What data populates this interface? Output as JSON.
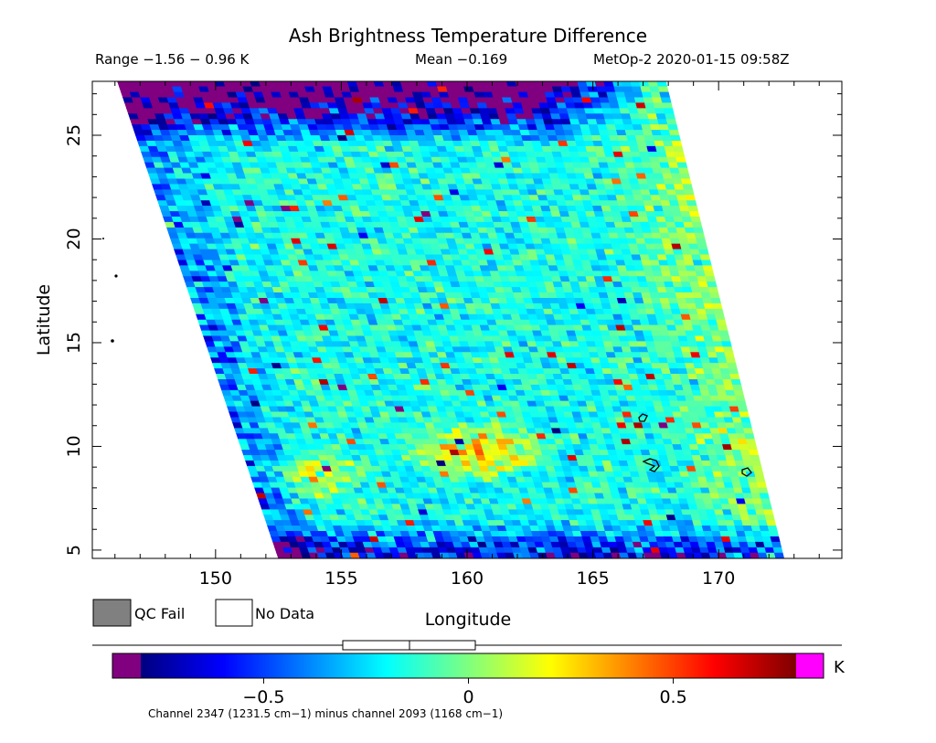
{
  "chart_data": {
    "type": "heatmap",
    "title": "Ash Brightness Temperature Difference",
    "range_label": "Range −1.56 − 0.96 K",
    "mean_label": "Mean −0.169",
    "satellite_label": "MetOp-2 2020-01-15 09:58Z",
    "xlabel": "Longitude",
    "ylabel": "Latitude",
    "xlim": [
      145.1,
      174.9
    ],
    "ylim": [
      4.6,
      27.6
    ],
    "xticks": [
      150,
      155,
      160,
      165,
      170
    ],
    "yticks": [
      5,
      10,
      15,
      20,
      25
    ],
    "swath_corners_lon_lat": {
      "top_left": [
        146.1,
        27.6
      ],
      "top_right": [
        167.9,
        27.6
      ],
      "bottom_right": [
        172.6,
        4.6
      ],
      "bottom_left": [
        152.5,
        4.6
      ]
    },
    "features": [
      {
        "kind": "hot_cluster",
        "lon": 160.5,
        "lat": 9.8,
        "mag": 0.55
      },
      {
        "kind": "hot_band",
        "lon_center": 154,
        "lat": 8.6,
        "mag": 0.5
      },
      {
        "kind": "cold_band",
        "lat_range": [
          24.5,
          27.6
        ],
        "mag": -1.2
      },
      {
        "kind": "cold_band",
        "lat_range": [
          4.6,
          6.5
        ],
        "mag": -0.7
      },
      {
        "kind": "warm_east_edge",
        "mag": 0.25
      }
    ],
    "colorbar": {
      "min": -0.8,
      "max": 0.8,
      "ticks": [
        -0.5,
        0,
        0.5
      ],
      "tick_labels": [
        "−0.5",
        "0",
        "0.5"
      ],
      "units": "K",
      "underflow_color": "#800080",
      "overflow_color": "#ff00ff",
      "colormap": [
        "#00007f",
        "#0000ff",
        "#007fff",
        "#00ffff",
        "#7fff7f",
        "#ffff00",
        "#ff7f00",
        "#ff0000",
        "#7f0000"
      ]
    },
    "qc_legend": [
      {
        "label": "QC Fail",
        "color": "#808080"
      },
      {
        "label": "No Data",
        "color": "#ffffff"
      }
    ],
    "footnote": "Channel 2347 (1231.5 cm−1) minus channel 2093 (1168 cm−1)"
  }
}
